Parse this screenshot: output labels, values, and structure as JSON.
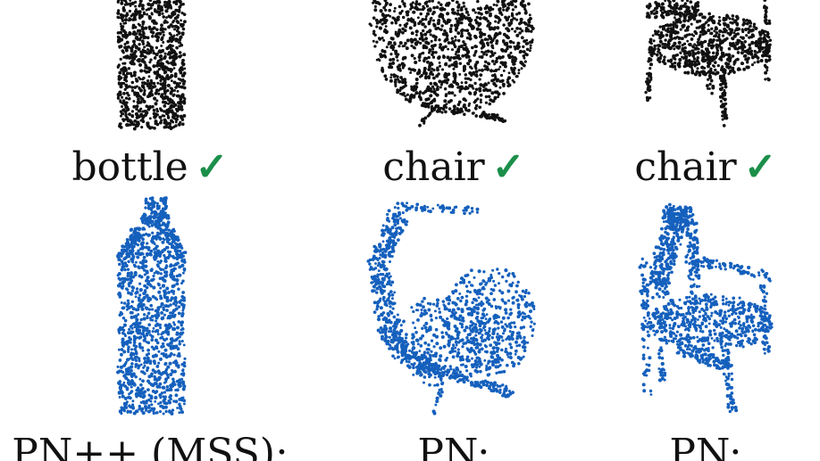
{
  "figure": {
    "colors": {
      "top_points": "#111111",
      "bottom_points": "#1560bd",
      "check": "#1b8f4a"
    },
    "top_row": [
      {
        "label": "bottle",
        "check": "✓"
      },
      {
        "label": "chair",
        "check": "✓"
      },
      {
        "label": "chair",
        "check": "✓"
      }
    ],
    "bottom_row": [
      {
        "label": "PN++ (MSS):"
      },
      {
        "label": "PN:"
      },
      {
        "label": "PN:"
      }
    ]
  }
}
